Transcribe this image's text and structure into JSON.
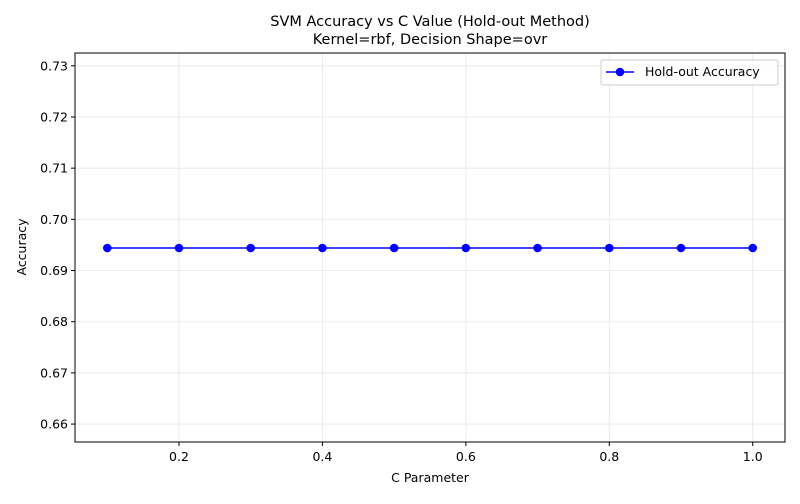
{
  "chart_data": {
    "type": "line",
    "title": "SVM Accuracy vs C Value (Hold-out Method)",
    "subtitle": "Kernel=rbf, Decision Shape=ovr",
    "xlabel": "C Parameter",
    "ylabel": "Accuracy",
    "xlim": [
      0.055,
      1.045
    ],
    "ylim": [
      0.6565,
      0.7325
    ],
    "x_ticks": [
      0.2,
      0.4,
      0.6,
      0.8,
      1.0
    ],
    "x_tick_labels": [
      "0.2",
      "0.4",
      "0.6",
      "0.8",
      "1.0"
    ],
    "y_ticks": [
      0.66,
      0.67,
      0.68,
      0.69,
      0.7,
      0.71,
      0.72,
      0.73
    ],
    "y_tick_labels": [
      "0.66",
      "0.67",
      "0.68",
      "0.69",
      "0.70",
      "0.71",
      "0.72",
      "0.73"
    ],
    "grid": true,
    "legend_position": "top-right",
    "series": [
      {
        "name": "Hold-out Accuracy",
        "color": "#0000ff",
        "marker": "circle",
        "x": [
          0.1,
          0.2,
          0.3,
          0.4,
          0.5,
          0.6,
          0.7,
          0.8,
          0.9,
          1.0
        ],
        "y": [
          0.6944,
          0.6944,
          0.6944,
          0.6944,
          0.6944,
          0.6944,
          0.6944,
          0.6944,
          0.6944,
          0.6944
        ]
      }
    ]
  }
}
